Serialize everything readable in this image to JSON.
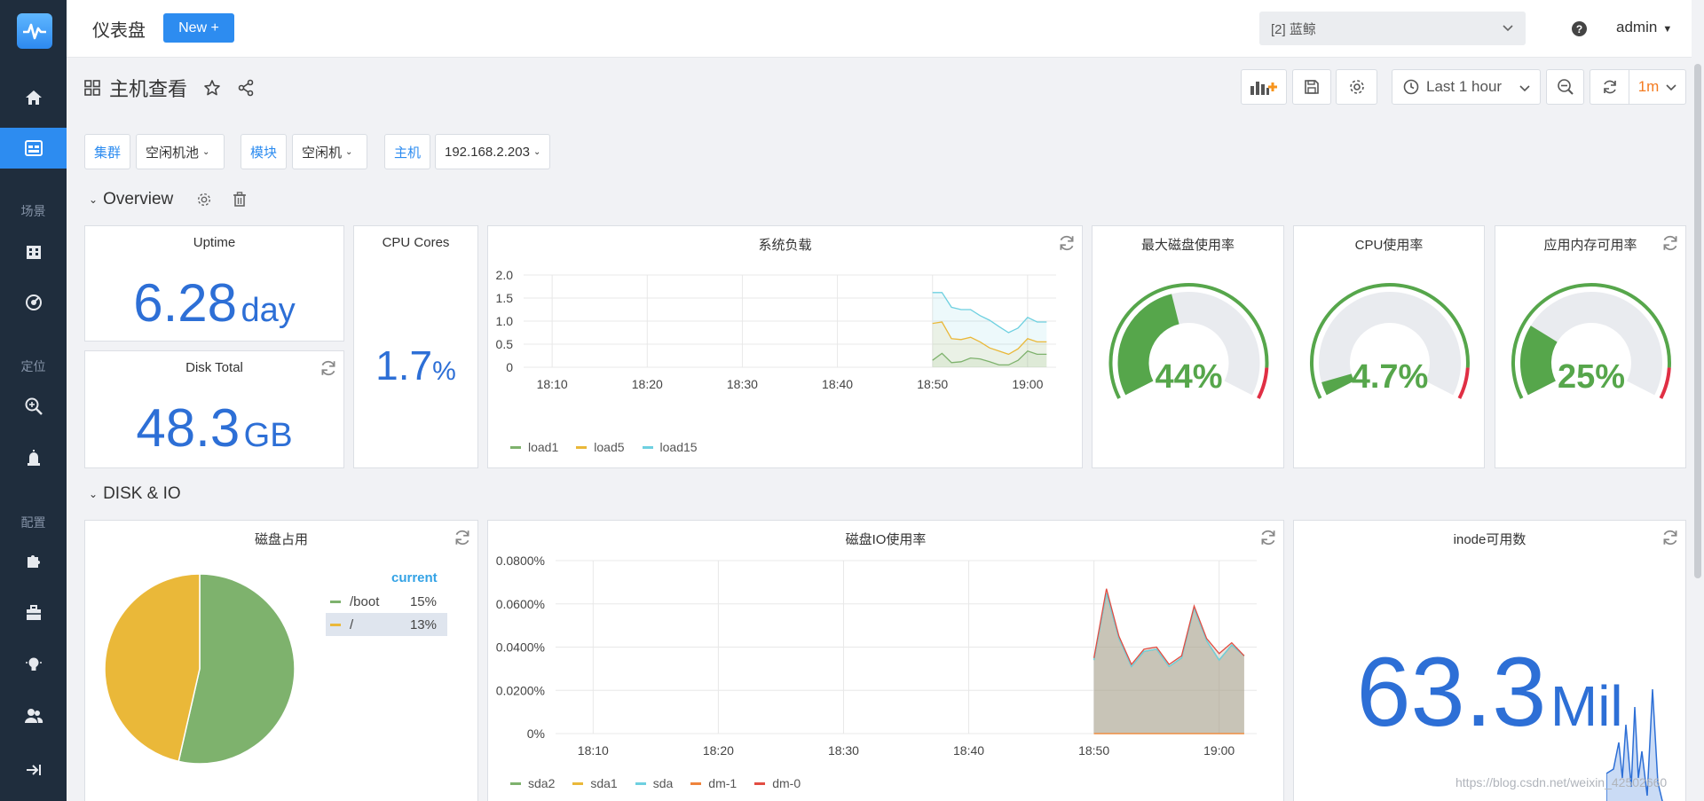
{
  "topbar": {
    "title": "仪表盘",
    "new_label": "New +",
    "org": "[2] 蓝鲸",
    "help": "?",
    "user": "admin"
  },
  "sidebar": {
    "sections": [
      "场景",
      "定位",
      "配置"
    ]
  },
  "dashboard": {
    "title": "主机查看",
    "time_range": "Last 1 hour",
    "refresh_interval": "1m",
    "variables": [
      {
        "label": "集群",
        "value": "空闲机池"
      },
      {
        "label": "模块",
        "value": "空闲机"
      },
      {
        "label": "主机",
        "value": "192.168.2.203"
      }
    ]
  },
  "rows": {
    "overview": "Overview",
    "disk_io": "DISK & IO"
  },
  "panels": {
    "uptime": {
      "title": "Uptime",
      "value": "6.28",
      "unit": "day"
    },
    "disk_total": {
      "title": "Disk Total",
      "value": "48.3",
      "unit": "GB"
    },
    "cpu_cores": {
      "title": "CPU Cores",
      "value": "1.7",
      "unit": "%"
    },
    "load": {
      "title": "系统负载"
    },
    "gauge_disk": {
      "title": "最大磁盘使用率",
      "value": "44%",
      "level": 0.44
    },
    "gauge_cpu": {
      "title": "CPU使用率",
      "value": "4.7%",
      "level": 0.047
    },
    "gauge_mem": {
      "title": "应用内存可用率",
      "value": "25%",
      "level": 0.25
    },
    "disk_usage": {
      "title": "磁盘占用",
      "legend_header": "current"
    },
    "disk_io": {
      "title": "磁盘IO使用率"
    },
    "inode": {
      "title": "inode可用数",
      "value": "63.3",
      "unit": "Mil"
    }
  },
  "chart_data": [
    {
      "type": "line",
      "title": "系统负载",
      "xticks": [
        "18:10",
        "18:20",
        "18:30",
        "18:40",
        "18:50",
        "19:00"
      ],
      "yticks": [
        "0",
        "0.5",
        "1.0",
        "1.5",
        "2.0"
      ],
      "ylim": [
        0,
        2.0
      ],
      "x": [
        "18:50",
        "18:51",
        "18:52",
        "18:53",
        "18:54",
        "18:55",
        "18:56",
        "18:57",
        "18:58",
        "18:59",
        "19:00",
        "19:01",
        "19:02"
      ],
      "series": [
        {
          "name": "load1",
          "color": "#7eb26d",
          "values": [
            0.15,
            0.3,
            0.1,
            0.12,
            0.2,
            0.18,
            0.12,
            0.05,
            0.05,
            0.15,
            0.35,
            0.28,
            0.28
          ]
        },
        {
          "name": "load5",
          "color": "#eab839",
          "values": [
            0.95,
            0.98,
            0.62,
            0.6,
            0.65,
            0.55,
            0.42,
            0.35,
            0.28,
            0.4,
            0.62,
            0.55,
            0.55
          ]
        },
        {
          "name": "load15",
          "color": "#6ed0e0",
          "values": [
            1.62,
            1.62,
            1.3,
            1.25,
            1.25,
            1.12,
            1.02,
            0.88,
            0.75,
            0.85,
            1.08,
            0.98,
            0.98
          ]
        }
      ]
    },
    {
      "type": "pie",
      "title": "磁盘占用",
      "series": [
        {
          "name": "/boot",
          "label": "15%",
          "value": 15,
          "color": "#7eb26d"
        },
        {
          "name": "/",
          "label": "13%",
          "value": 13,
          "color": "#eab839"
        }
      ]
    },
    {
      "type": "area",
      "title": "磁盘IO使用率",
      "xticks": [
        "18:10",
        "18:20",
        "18:30",
        "18:40",
        "18:50",
        "19:00"
      ],
      "yticks": [
        "0%",
        "0.0200%",
        "0.0400%",
        "0.0600%",
        "0.0800%"
      ],
      "ylim": [
        0,
        0.08
      ],
      "x": [
        "18:50",
        "18:51",
        "18:52",
        "18:53",
        "18:54",
        "18:55",
        "18:56",
        "18:57",
        "18:58",
        "18:59",
        "19:00",
        "19:01",
        "19:02"
      ],
      "series": [
        {
          "name": "sda2",
          "color": "#7eb26d",
          "values": [
            0.034,
            0.065,
            0.044,
            0.031,
            0.038,
            0.039,
            0.031,
            0.035,
            0.058,
            0.043,
            0.034,
            0.041,
            0.036
          ]
        },
        {
          "name": "sda1",
          "color": "#eab839",
          "values": [
            0,
            0,
            0,
            0,
            0,
            0,
            0,
            0,
            0,
            0,
            0,
            0,
            0
          ]
        },
        {
          "name": "sda",
          "color": "#6ed0e0",
          "values": [
            0.034,
            0.065,
            0.044,
            0.031,
            0.038,
            0.039,
            0.031,
            0.035,
            0.058,
            0.043,
            0.034,
            0.041,
            0.036
          ]
        },
        {
          "name": "dm-1",
          "color": "#ef843c",
          "values": [
            0,
            0,
            0,
            0,
            0,
            0,
            0,
            0,
            0,
            0,
            0,
            0,
            0
          ]
        },
        {
          "name": "dm-0",
          "color": "#e24d42",
          "values": [
            0.035,
            0.067,
            0.045,
            0.032,
            0.039,
            0.04,
            0.032,
            0.036,
            0.059,
            0.044,
            0.037,
            0.042,
            0.036
          ]
        }
      ]
    }
  ],
  "watermark": "https://blog.csdn.net/weixin_42502660"
}
